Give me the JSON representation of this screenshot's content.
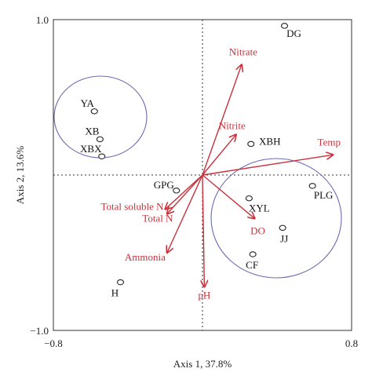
{
  "colors": {
    "vector": "#c8323c",
    "cluster": "#6b6bb3",
    "point": "#222222",
    "frame": "#333333"
  },
  "chart_data": {
    "type": "scatter",
    "subtype": "ordination-biplot",
    "xlabel": "Axis 1, 37.8%",
    "ylabel": "Axis 2, 13.6%",
    "xlim": [
      -0.8,
      0.8
    ],
    "ylim": [
      -1.0,
      1.0
    ],
    "xticks": [
      {
        "value": -0.8,
        "label": "−0.8"
      },
      {
        "value": 0.8,
        "label": "0.8"
      }
    ],
    "yticks": [
      {
        "value": -1.0,
        "label": "−1.0"
      },
      {
        "value": 1.0,
        "label": "1.0"
      }
    ],
    "reference_lines": {
      "x": 0,
      "y": 0,
      "style": "dotted"
    },
    "sites": [
      {
        "label": "DG",
        "x": 0.44,
        "y": 0.96
      },
      {
        "label": "YA",
        "x": -0.58,
        "y": 0.41
      },
      {
        "label": "XB",
        "x": -0.55,
        "y": 0.23
      },
      {
        "label": "XBX",
        "x": -0.54,
        "y": 0.12
      },
      {
        "label": "XBH",
        "x": 0.26,
        "y": 0.2
      },
      {
        "label": "GPG",
        "x": -0.14,
        "y": -0.1
      },
      {
        "label": "PLG",
        "x": 0.59,
        "y": -0.07
      },
      {
        "label": "XYL",
        "x": 0.25,
        "y": -0.15
      },
      {
        "label": "JJ",
        "x": 0.43,
        "y": -0.34
      },
      {
        "label": "CF",
        "x": 0.27,
        "y": -0.51
      },
      {
        "label": "H",
        "x": -0.44,
        "y": -0.69
      }
    ],
    "vectors": [
      {
        "label": "Nitrate",
        "x": 0.21,
        "y": 0.71
      },
      {
        "label": "Nitrite",
        "x": 0.18,
        "y": 0.26
      },
      {
        "label": "Temp",
        "x": 0.7,
        "y": 0.13
      },
      {
        "label": "Total soluble N",
        "x": -0.2,
        "y": -0.22
      },
      {
        "label": "Total N",
        "x": -0.19,
        "y": -0.25
      },
      {
        "label": "Ammonia",
        "x": -0.19,
        "y": -0.5
      },
      {
        "label": "pH",
        "x": 0.01,
        "y": -0.72
      },
      {
        "label": "DO",
        "x": 0.28,
        "y": -0.28
      }
    ],
    "clusters": [
      {
        "members": [
          "YA",
          "XB",
          "XBX"
        ]
      },
      {
        "members": [
          "XYL",
          "PLG",
          "JJ",
          "CF"
        ]
      }
    ]
  }
}
